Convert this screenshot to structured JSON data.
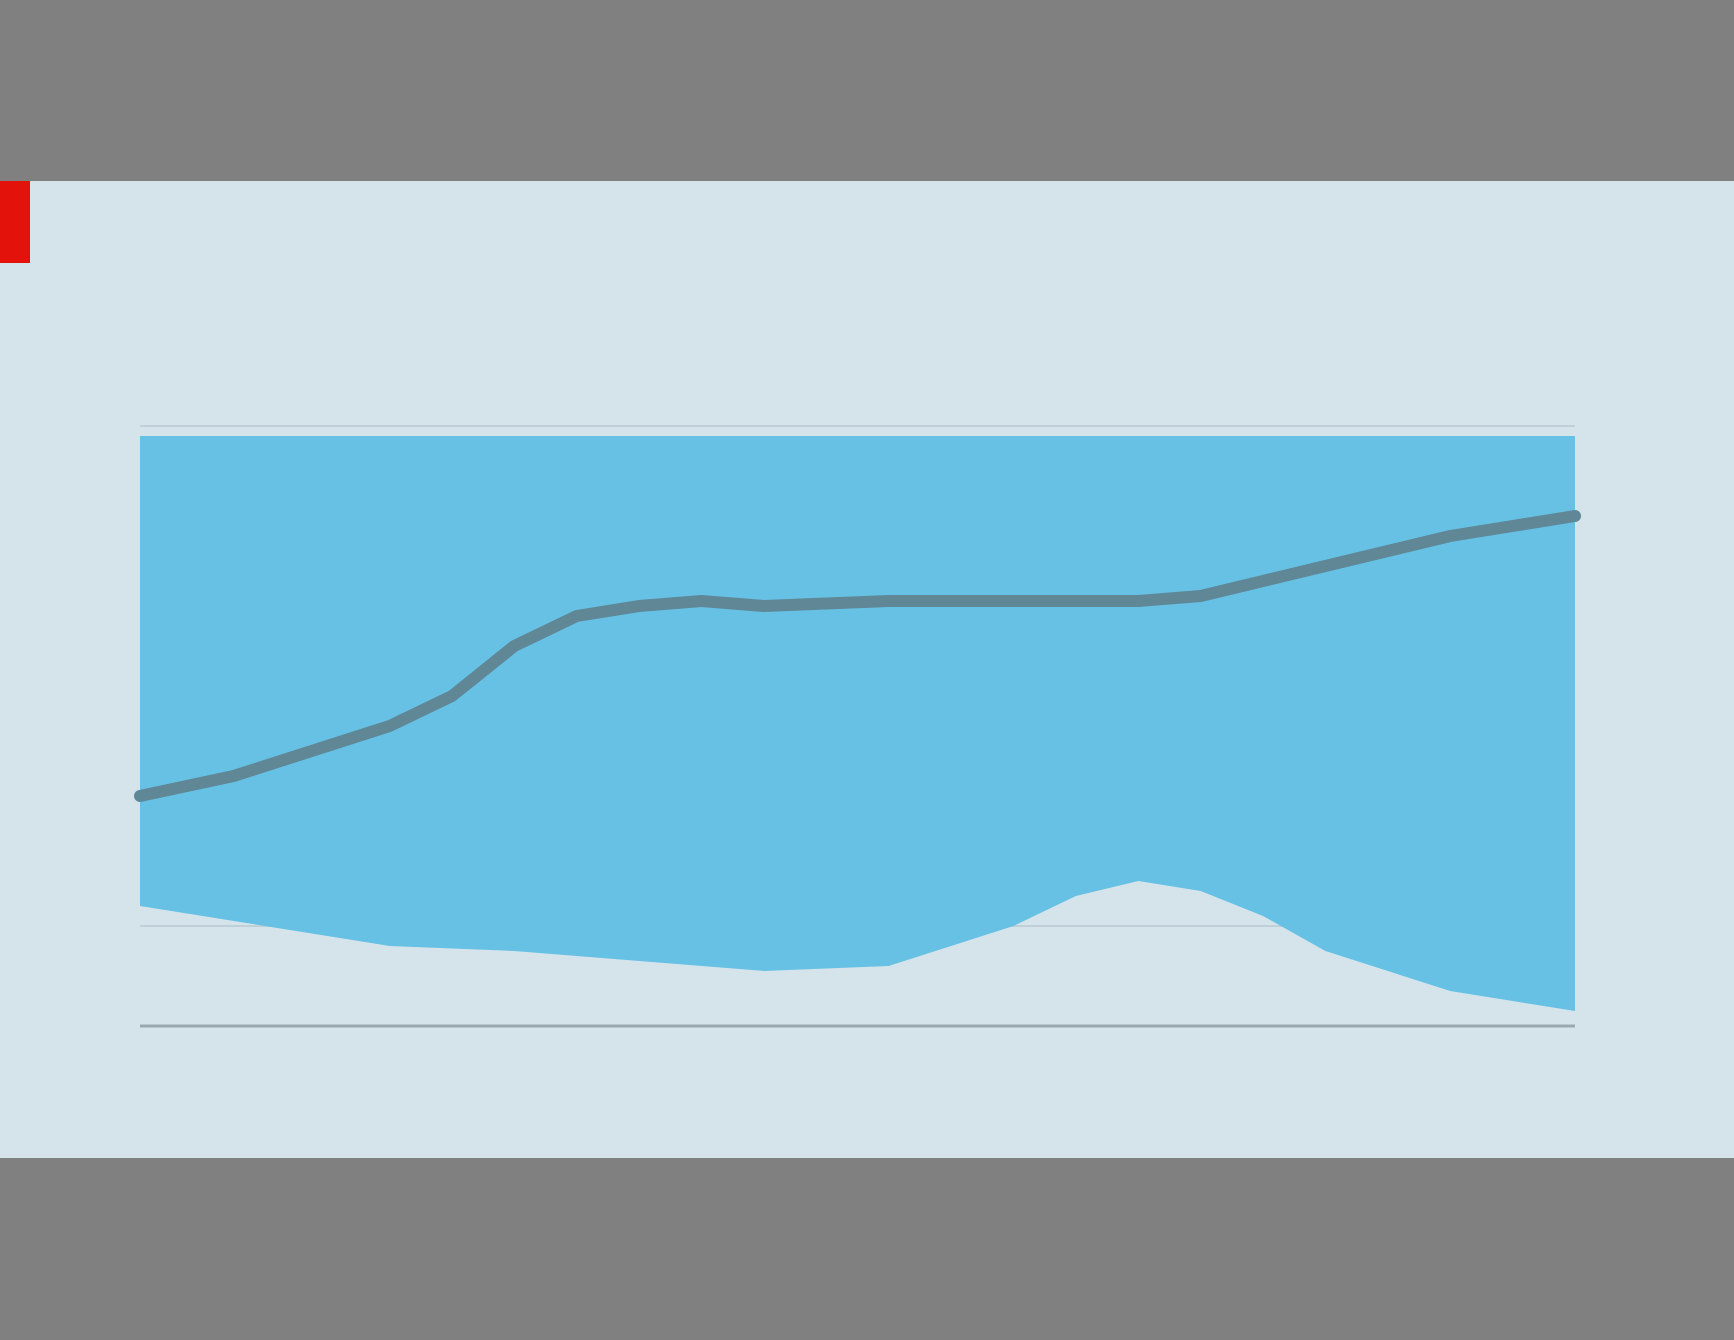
{
  "colors": {
    "background": "#d5e4eb",
    "accent": "#e3120b",
    "area": "#67c1e4",
    "line": "#5f8796",
    "right_axis": "#1f8fd6"
  },
  "header": {
    "title": "",
    "subtitle": ""
  },
  "footer": {
    "source": "",
    "credit": ""
  },
  "chart_data": {
    "type": "line",
    "title": "",
    "subtitle": "",
    "left_axis": {
      "label": "",
      "ticks": [
        "",
        "",
        "",
        "",
        "",
        "",
        ""
      ],
      "ylim": [
        0,
        6
      ]
    },
    "right_axis": {
      "label": "",
      "ticks": [
        "",
        "",
        "",
        "",
        "",
        "",
        ""
      ],
      "ylim": [
        0,
        6
      ]
    },
    "x_axis": {
      "ticks": [
        "",
        "",
        "",
        "",
        ""
      ],
      "tick_positions": [
        0.5,
        1.5,
        2.5,
        3.5,
        4.3
      ],
      "xlim": [
        0,
        4.6
      ]
    },
    "series": [
      {
        "axis": "right",
        "kind": "area",
        "x": [
          0,
          0.4,
          0.8,
          1.2,
          1.6,
          2.0,
          2.4,
          2.8,
          3.0,
          3.2,
          3.4,
          3.6,
          3.8,
          4.2,
          4.6
        ],
        "lower": [
          1.2,
          1.0,
          0.8,
          0.75,
          0.65,
          0.55,
          0.6,
          1.0,
          1.3,
          1.45,
          1.35,
          1.1,
          0.75,
          0.35,
          0.15
        ],
        "upper": [
          5.9,
          5.9,
          5.9,
          5.9,
          5.9,
          5.9,
          5.9,
          5.9,
          5.9,
          5.9,
          5.9,
          5.9,
          5.9,
          5.9,
          5.9
        ]
      },
      {
        "axis": "left",
        "kind": "line",
        "x": [
          0,
          0.3,
          0.6,
          0.8,
          1.0,
          1.2,
          1.4,
          1.6,
          1.8,
          2.0,
          2.4,
          2.8,
          3.0,
          3.2,
          3.4,
          3.6,
          3.8,
          4.0,
          4.2,
          4.4,
          4.6
        ],
        "y": [
          2.3,
          2.5,
          2.8,
          3.0,
          3.3,
          3.8,
          4.1,
          4.2,
          4.25,
          4.2,
          4.25,
          4.25,
          4.25,
          4.25,
          4.3,
          4.45,
          4.6,
          4.75,
          4.9,
          5.0,
          5.1
        ]
      }
    ]
  }
}
